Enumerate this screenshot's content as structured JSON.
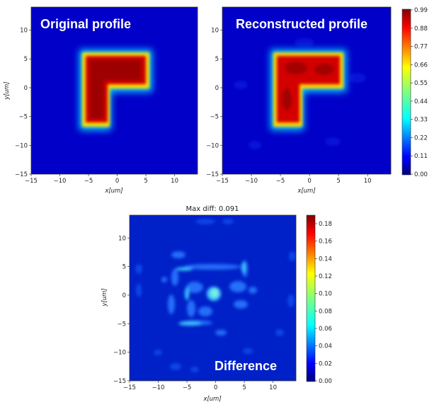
{
  "chart_data": [
    {
      "type": "heatmap",
      "title": "Original profile",
      "xlabel": "x[um]",
      "ylabel": "y[um]",
      "xlim": [
        -15,
        14
      ],
      "ylim": [
        -15,
        14
      ],
      "x_ticks": [
        -15,
        -10,
        -5,
        0,
        5,
        10
      ],
      "y_ticks": [
        -15,
        -10,
        -5,
        0,
        5,
        10
      ],
      "shape": "L-shaped profile: bar y from 1 to 5 for x from -5 to 5, stem x from -5 to -1 for y from -6 to 5",
      "value_range": [
        0.0,
        0.99
      ]
    },
    {
      "type": "heatmap",
      "title": "Reconstructed profile",
      "xlabel": "x[um]",
      "ylabel": "",
      "xlim": [
        -15,
        14
      ],
      "ylim": [
        -15,
        14
      ],
      "x_ticks": [
        -15,
        -10,
        -5,
        0,
        5,
        10
      ],
      "y_ticks": [
        -15,
        -10,
        -5,
        0,
        5,
        10
      ],
      "value_range": [
        0.0,
        0.99
      ]
    },
    {
      "type": "heatmap",
      "title": "Difference",
      "subtitle": "Max diff: 0.091",
      "xlabel": "x[um]",
      "ylabel": "y[um]",
      "xlim": [
        -15,
        14
      ],
      "ylim": [
        -15,
        14
      ],
      "x_ticks": [
        -15,
        -10,
        -5,
        0,
        5,
        10
      ],
      "y_ticks": [
        -15,
        -10,
        -5,
        0,
        5,
        10
      ],
      "value_range": [
        0.0,
        0.19
      ]
    }
  ],
  "colorbars": {
    "top": {
      "ticks": [
        "0.99",
        "0.88",
        "0.77",
        "0.66",
        "0.55",
        "0.44",
        "0.33",
        "0.22",
        "0.11",
        "0.00"
      ]
    },
    "bottom": {
      "ticks": [
        "0.18",
        "0.16",
        "0.14",
        "0.12",
        "0.10",
        "0.08",
        "0.06",
        "0.04",
        "0.02",
        "0.00"
      ]
    }
  }
}
